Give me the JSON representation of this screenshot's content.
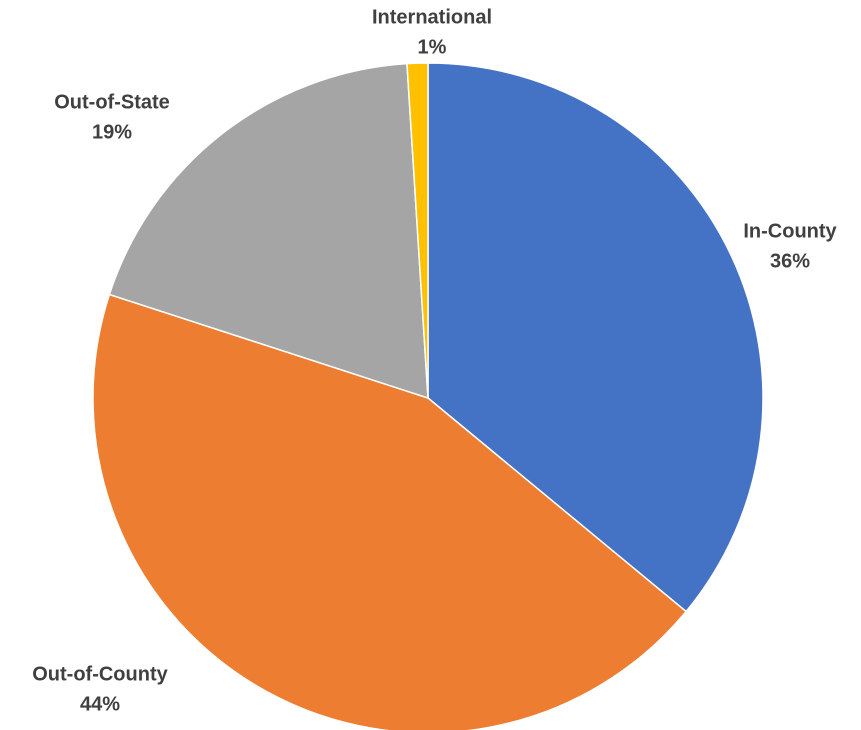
{
  "chart_data": {
    "type": "pie",
    "categories": [
      "In-County",
      "Out-of-County",
      "Out-of-State",
      "International"
    ],
    "values": [
      36,
      44,
      19,
      1
    ],
    "value_labels": [
      "36%",
      "44%",
      "19%",
      "1%"
    ],
    "colors": [
      "#4472c4",
      "#ed7d31",
      "#a5a5a5",
      "#ffc000"
    ]
  }
}
